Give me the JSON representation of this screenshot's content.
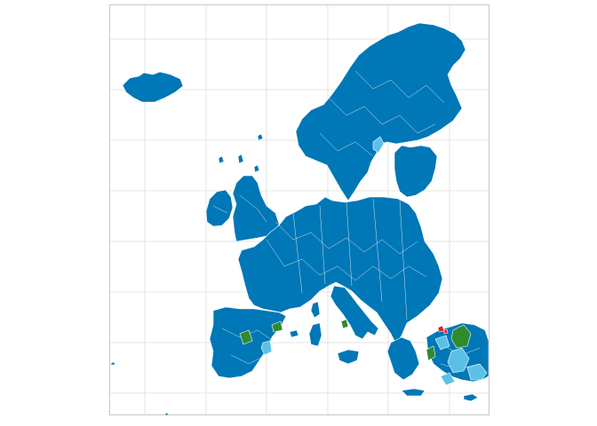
{
  "map": {
    "type": "choropleth",
    "region": "Europe",
    "grid": true,
    "legend": "none",
    "colors": {
      "background": "#ffffff",
      "panel_border": "#c8c8c8",
      "gridline": "#dcdcdc",
      "region_border": "#ffffff",
      "primary": "#0077b6",
      "secondary": "#5bc0e8",
      "tertiary": "#2e8b2e",
      "accent": "#e0202a"
    }
  }
}
